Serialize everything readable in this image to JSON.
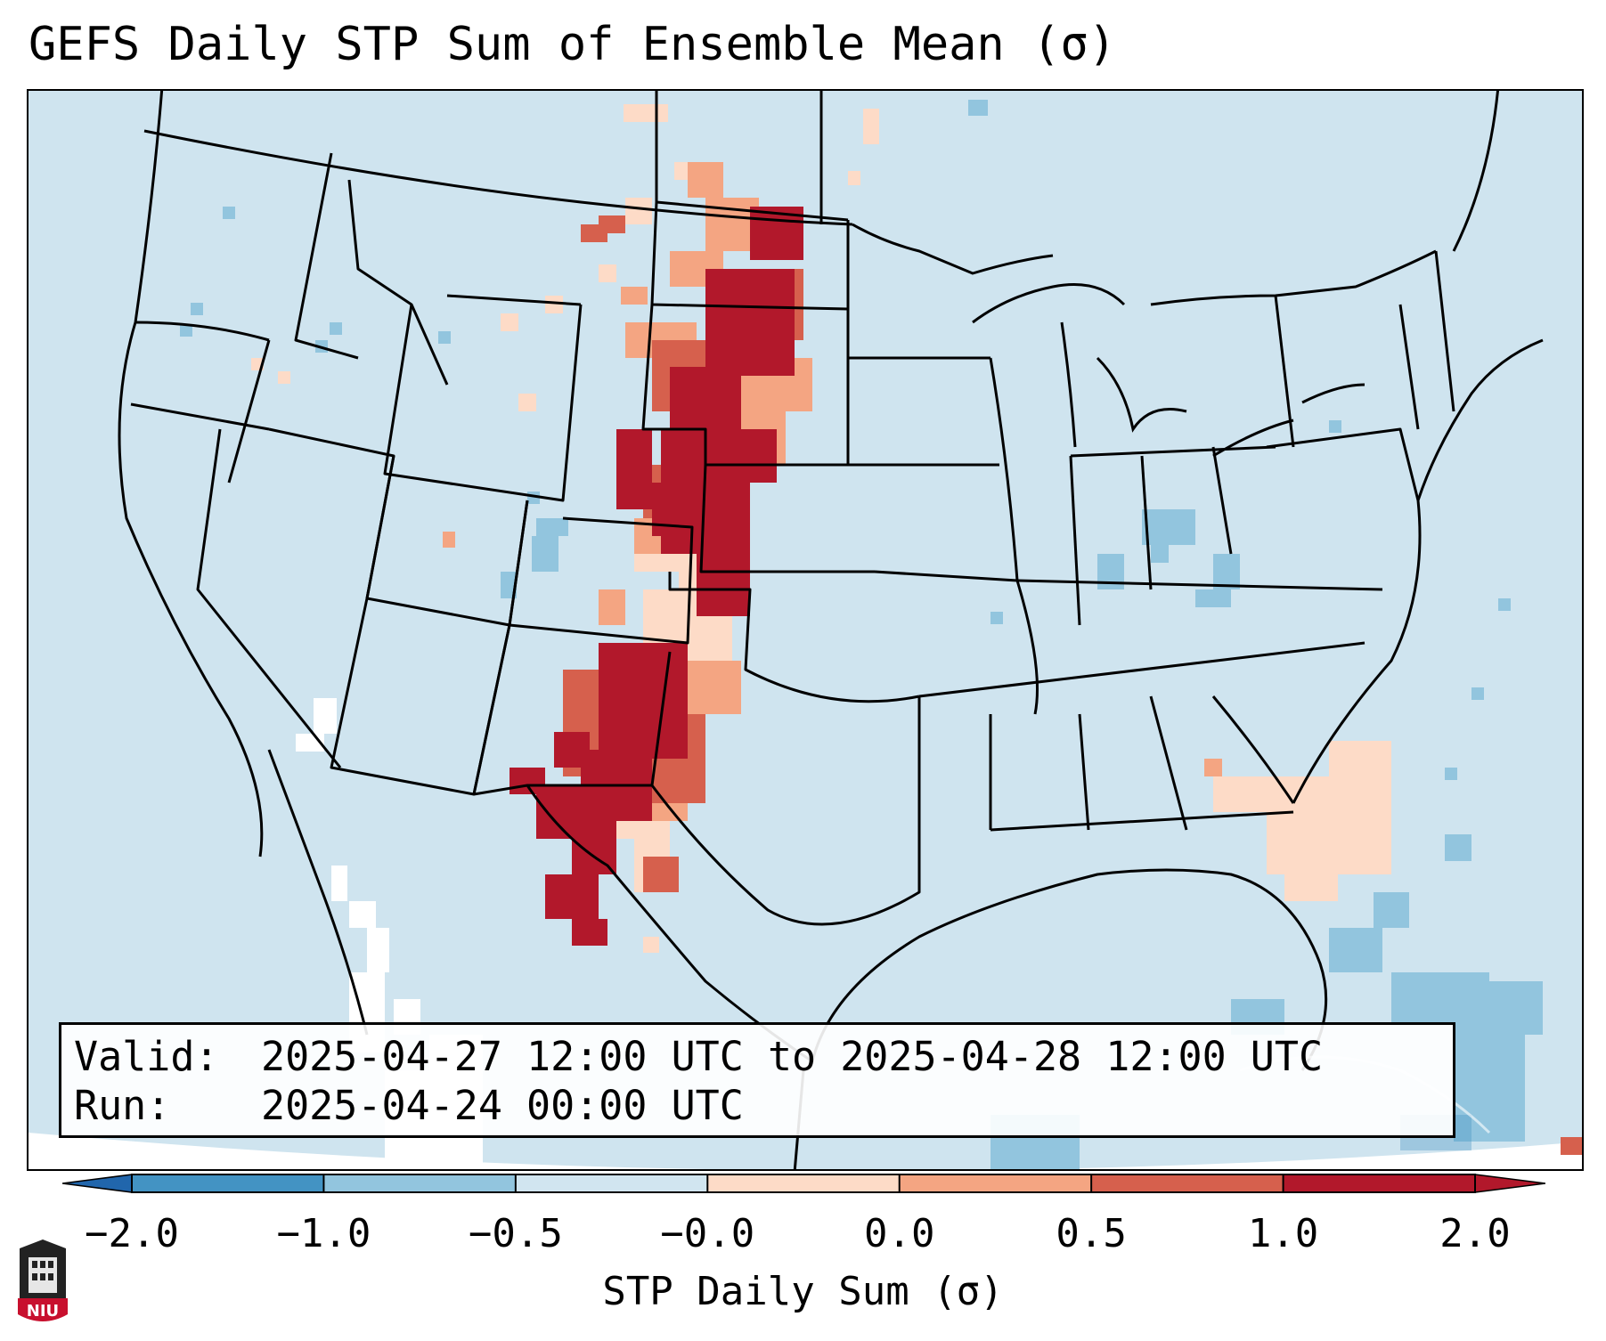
{
  "title": "GEFS Daily STP Sum of Ensemble Mean (σ)",
  "info": {
    "valid_key": "Valid:",
    "valid_value": "2025-04-27 12:00 UTC to 2025-04-28 12:00 UTC",
    "run_key": "Run:",
    "run_value": "2025-04-24 00:00 UTC"
  },
  "colorbar": {
    "label": "STP Daily Sum (σ)",
    "ticks": [
      "−2.0",
      "−1.0",
      "−0.5",
      "−0.0",
      "0.0",
      "0.5",
      "1.0",
      "2.0"
    ],
    "colors": [
      "#4393c3",
      "#92c5de",
      "#d1e5f0",
      "#fddbc7",
      "#f4a582",
      "#d6604d",
      "#b2182b"
    ],
    "extend_min_color": "#2166ac",
    "extend_max_color": "#b2182b"
  },
  "map": {
    "background_color": "#d1e5f0",
    "region": "Contiguous United States, northern Mexico, southern Canada, Caribbean"
  },
  "logo": {
    "text": "NIU"
  }
}
